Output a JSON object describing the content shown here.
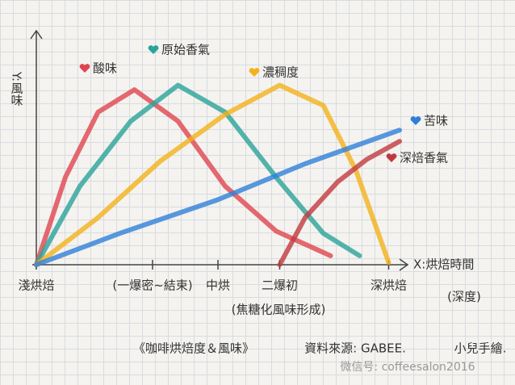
{
  "chart_data": {
    "type": "line",
    "title": "《咖啡烘焙度＆風味》",
    "source": "資料來源: GABEE.",
    "author": "小兒手繪.",
    "watermark": "微信号: coffeesalon2016",
    "y_label": "Y:風味",
    "x_label": "X:烘焙時間",
    "x_label_note": "(深度)",
    "annotations": [
      "(焦糖化風味形成)"
    ],
    "xlim": [
      0,
      100
    ],
    "ylim": [
      0,
      100
    ],
    "xticks": [
      {
        "value": 0,
        "label": "淺烘焙"
      },
      {
        "value": 32,
        "label": "(一爆密~結束)"
      },
      {
        "value": 50,
        "label": "中烘"
      },
      {
        "value": 67,
        "label": "二爆初"
      },
      {
        "value": 97,
        "label": "深烘焙"
      }
    ],
    "series": [
      {
        "name": "酸味",
        "color": "#e0454f",
        "x": [
          0,
          8,
          17,
          27,
          39,
          52,
          66,
          81
        ],
        "values": [
          0,
          39,
          68,
          78,
          64,
          35,
          15,
          4
        ]
      },
      {
        "name": "原始香氣",
        "color": "#2aa39a",
        "x": [
          0,
          12,
          26,
          39,
          52,
          66,
          79,
          89
        ],
        "values": [
          0,
          35,
          64,
          80,
          68,
          39,
          14,
          4
        ]
      },
      {
        "name": "濃稠度",
        "color": "#f2b21c",
        "x": [
          0,
          17,
          34,
          52,
          67,
          79,
          88,
          97
        ],
        "values": [
          0,
          21,
          46,
          67,
          80,
          71,
          42,
          1
        ]
      },
      {
        "name": "苦味",
        "color": "#2f7fd8",
        "x": [
          0,
          23,
          50,
          74,
          100
        ],
        "values": [
          0,
          14,
          29,
          45,
          60
        ]
      },
      {
        "name": "深焙香氣",
        "color": "#c0393f",
        "x": [
          67,
          74,
          83,
          91,
          100
        ],
        "values": [
          0,
          21,
          37,
          47,
          55
        ]
      }
    ]
  }
}
